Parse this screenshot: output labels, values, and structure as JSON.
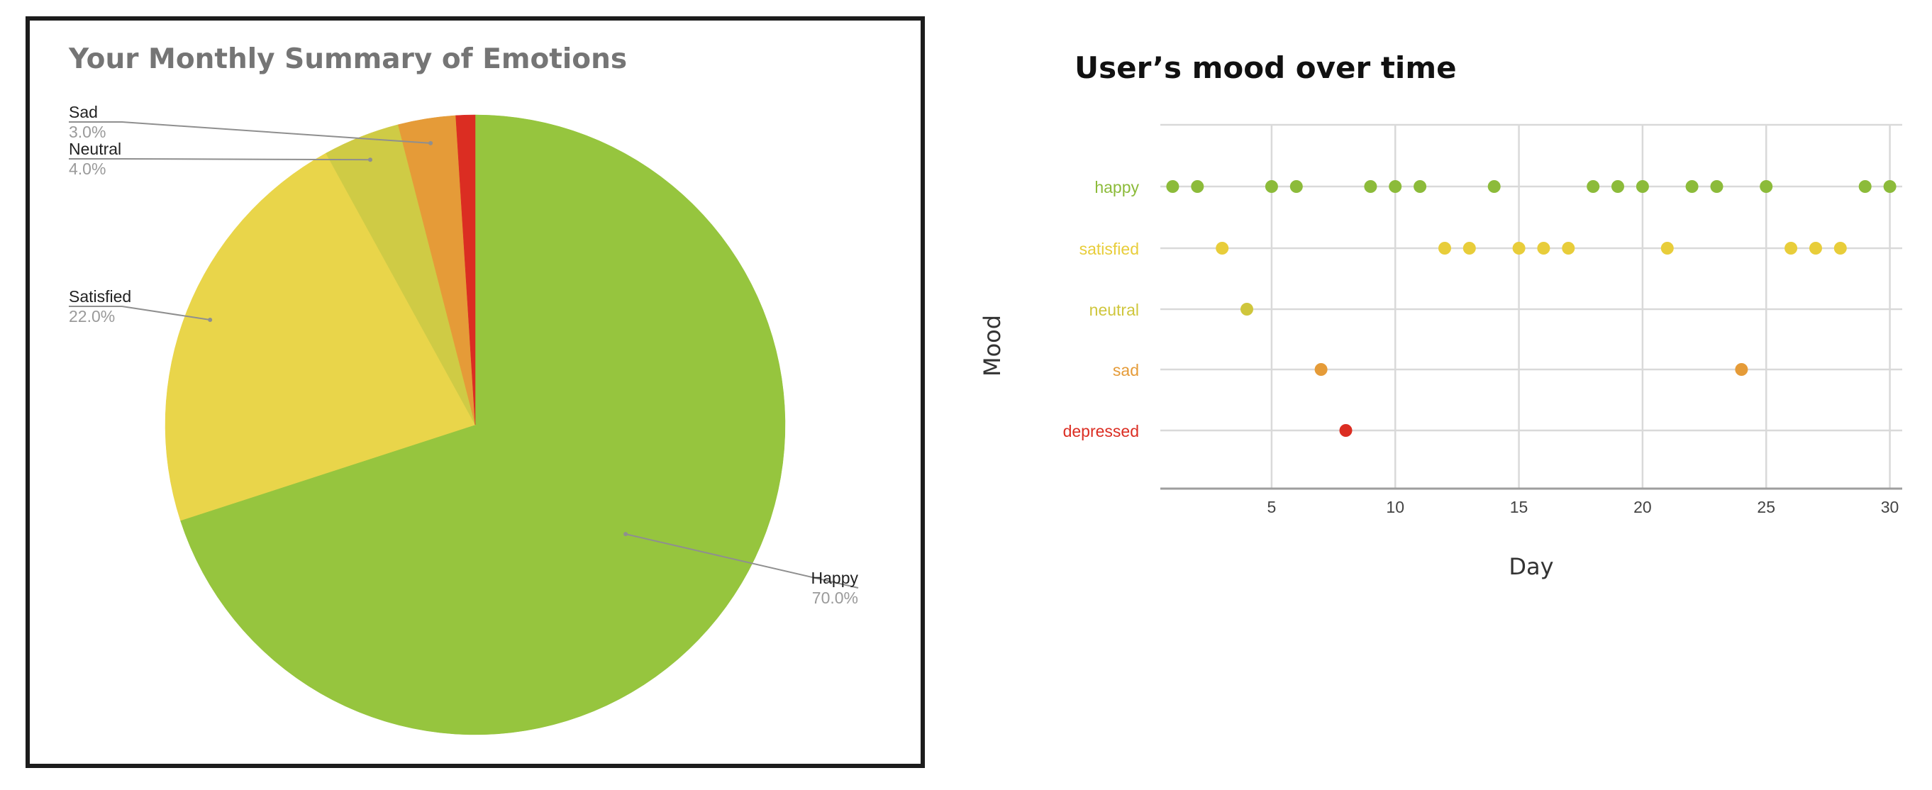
{
  "chart_data": [
    {
      "type": "pie",
      "title": "Your Monthly Summary of Emotions",
      "slices": [
        {
          "label": "Happy",
          "value": 70.0,
          "pct_label": "70.0%",
          "color": "#96c53e"
        },
        {
          "label": "Satisfied",
          "value": 22.0,
          "pct_label": "22.0%",
          "color": "#e9d54a"
        },
        {
          "label": "Neutral",
          "value": 4.0,
          "pct_label": "4.0%",
          "color": "#cfcb45"
        },
        {
          "label": "Sad",
          "value": 3.0,
          "pct_label": "3.0%",
          "color": "#e59b38"
        },
        {
          "label": "",
          "value": 1.0,
          "pct_label": "",
          "color": "#db2d22"
        }
      ]
    },
    {
      "type": "scatter",
      "title": "User’s mood over time",
      "xlabel": "Day",
      "ylabel": "Mood",
      "xlim": [
        0.5,
        30.5
      ],
      "x_ticks": [
        5,
        10,
        15,
        20,
        25,
        30
      ],
      "categories": [
        "happy",
        "satisfied",
        "neutral",
        "sad",
        "depressed"
      ],
      "category_colors": [
        "#8cbb3a",
        "#e8cd3a",
        "#cfc63c",
        "#e59b38",
        "#db2d22"
      ],
      "grid": true,
      "legend": "none",
      "points": [
        {
          "x": 1,
          "y": "happy"
        },
        {
          "x": 2,
          "y": "happy"
        },
        {
          "x": 3,
          "y": "satisfied"
        },
        {
          "x": 4,
          "y": "neutral"
        },
        {
          "x": 5,
          "y": "happy"
        },
        {
          "x": 6,
          "y": "happy"
        },
        {
          "x": 7,
          "y": "sad"
        },
        {
          "x": 8,
          "y": "depressed"
        },
        {
          "x": 9,
          "y": "happy"
        },
        {
          "x": 10,
          "y": "happy"
        },
        {
          "x": 11,
          "y": "happy"
        },
        {
          "x": 12,
          "y": "satisfied"
        },
        {
          "x": 13,
          "y": "satisfied"
        },
        {
          "x": 14,
          "y": "happy"
        },
        {
          "x": 15,
          "y": "satisfied"
        },
        {
          "x": 16,
          "y": "satisfied"
        },
        {
          "x": 17,
          "y": "satisfied"
        },
        {
          "x": 18,
          "y": "happy"
        },
        {
          "x": 19,
          "y": "happy"
        },
        {
          "x": 20,
          "y": "happy"
        },
        {
          "x": 21,
          "y": "satisfied"
        },
        {
          "x": 22,
          "y": "happy"
        },
        {
          "x": 23,
          "y": "happy"
        },
        {
          "x": 24,
          "y": "sad"
        },
        {
          "x": 25,
          "y": "happy"
        },
        {
          "x": 26,
          "y": "satisfied"
        },
        {
          "x": 27,
          "y": "satisfied"
        },
        {
          "x": 28,
          "y": "satisfied"
        },
        {
          "x": 29,
          "y": "happy"
        },
        {
          "x": 30,
          "y": "happy"
        }
      ]
    }
  ]
}
